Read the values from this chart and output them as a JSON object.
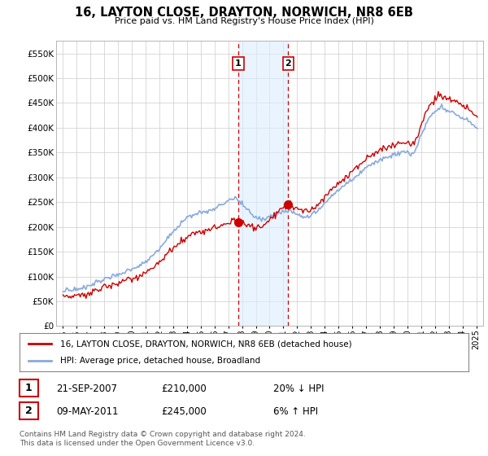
{
  "title": "16, LAYTON CLOSE, DRAYTON, NORWICH, NR8 6EB",
  "subtitle": "Price paid vs. HM Land Registry's House Price Index (HPI)",
  "background_color": "#ffffff",
  "plot_bg_color": "#ffffff",
  "grid_color": "#cccccc",
  "sale1_date_label": "21-SEP-2007",
  "sale1_price": 210000,
  "sale1_hpi_diff": "20% ↓ HPI",
  "sale2_date_label": "09-MAY-2011",
  "sale2_price": 245000,
  "sale2_hpi_diff": "6% ↑ HPI",
  "sale1_x": 2007.72,
  "sale2_x": 2011.35,
  "legend_line1": "16, LAYTON CLOSE, DRAYTON, NORWICH, NR8 6EB (detached house)",
  "legend_line2": "HPI: Average price, detached house, Broadland",
  "footnote": "Contains HM Land Registry data © Crown copyright and database right 2024.\nThis data is licensed under the Open Government Licence v3.0.",
  "ylim": [
    0,
    575000
  ],
  "yticks": [
    0,
    50000,
    100000,
    150000,
    200000,
    250000,
    300000,
    350000,
    400000,
    450000,
    500000,
    550000
  ],
  "ytick_labels": [
    "£0",
    "£50K",
    "£100K",
    "£150K",
    "£200K",
    "£250K",
    "£300K",
    "£350K",
    "£400K",
    "£450K",
    "£500K",
    "£550K"
  ],
  "xlim": [
    1994.5,
    2025.5
  ],
  "xtick_years": [
    1995,
    1996,
    1997,
    1998,
    1999,
    2000,
    2001,
    2002,
    2003,
    2004,
    2005,
    2006,
    2007,
    2008,
    2009,
    2010,
    2011,
    2012,
    2013,
    2014,
    2015,
    2016,
    2017,
    2018,
    2019,
    2020,
    2021,
    2022,
    2023,
    2024,
    2025
  ],
  "sale_marker_color": "#cc0000",
  "hpi_line_color": "#88aadd",
  "price_line_color": "#cc0000",
  "shade_color": "#ddeeff",
  "shade_alpha": 0.6
}
